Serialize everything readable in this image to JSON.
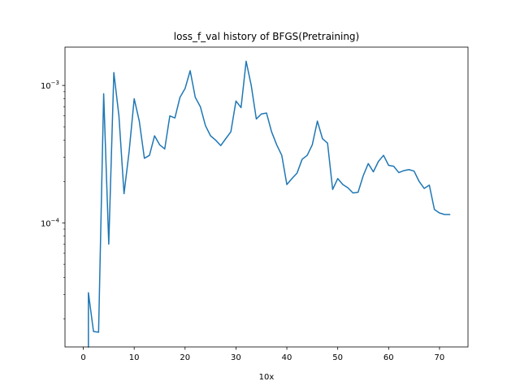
{
  "chart_data": {
    "type": "line",
    "title": "loss_f_val history of BFGS(Pretraining)",
    "xlabel": "10x",
    "ylabel": "",
    "yscale": "log",
    "xlim": [
      -3.6,
      75.6
    ],
    "ylim": [
      1.25e-05,
      0.0019
    ],
    "grid": false,
    "x_ticks": [
      0,
      10,
      20,
      30,
      40,
      50,
      60,
      70
    ],
    "y_ticks": [
      {
        "value": 0.0001,
        "base": "10",
        "exp": "−4"
      },
      {
        "value": 0.001,
        "base": "10",
        "exp": "−3"
      }
    ],
    "color": "#1f77b4",
    "series": [
      {
        "x": [
          1,
          1,
          2,
          3,
          4,
          5,
          6,
          7,
          8,
          9,
          10,
          11,
          12,
          13,
          14,
          15,
          16,
          17,
          18,
          19,
          20,
          21,
          22,
          23,
          24,
          25,
          26,
          27,
          28,
          29,
          30,
          31,
          32,
          33,
          34,
          35,
          36,
          37,
          38,
          39,
          40,
          41,
          42,
          43,
          44,
          45,
          46,
          47,
          48,
          49,
          50,
          51,
          52,
          53,
          54,
          55,
          56,
          57,
          58,
          59,
          60,
          61,
          62,
          63,
          64,
          65,
          66,
          67,
          68,
          69,
          70,
          71,
          72
        ],
        "y": [
          1.25e-05,
          3.1e-05,
          1.62e-05,
          1.6e-05,
          0.00087,
          7e-05,
          0.00124,
          0.0006,
          0.000163,
          0.00033,
          0.0008,
          0.00055,
          0.000295,
          0.00031,
          0.00043,
          0.00037,
          0.000345,
          0.0006,
          0.00058,
          0.00082,
          0.00095,
          0.00128,
          0.00082,
          0.0007,
          0.00051,
          0.00043,
          0.0004,
          0.000365,
          0.00041,
          0.00046,
          0.00077,
          0.00069,
          0.0015,
          0.001,
          0.00057,
          0.00062,
          0.00063,
          0.00046,
          0.00037,
          0.00031,
          0.00019,
          0.00021,
          0.00023,
          0.00029,
          0.00031,
          0.00037,
          0.00055,
          0.00041,
          0.00038,
          0.000175,
          0.00021,
          0.00019,
          0.00018,
          0.000165,
          0.000167,
          0.00022,
          0.00027,
          0.000235,
          0.00028,
          0.00031,
          0.000262,
          0.000258,
          0.000232,
          0.00024,
          0.000244,
          0.000238,
          0.0002,
          0.000178,
          0.000188,
          0.000125,
          0.000118,
          0.000115,
          0.000115
        ]
      }
    ]
  }
}
